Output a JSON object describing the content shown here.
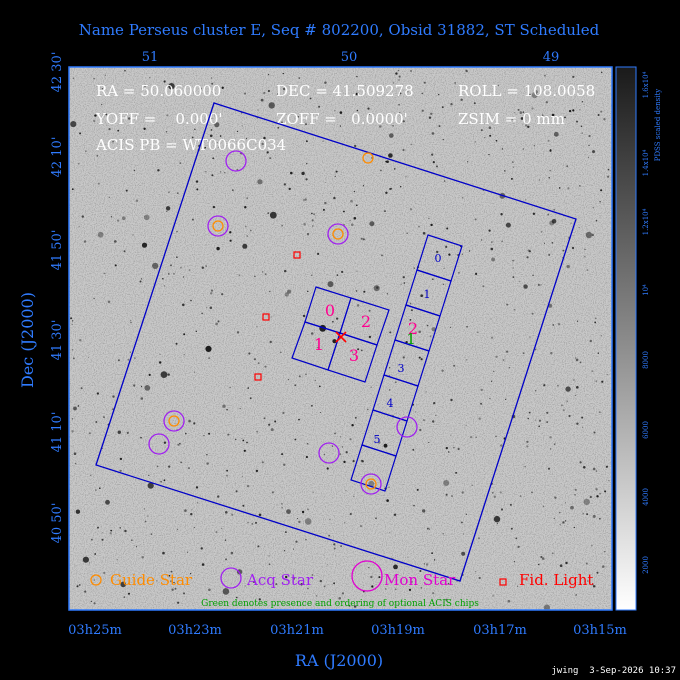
{
  "header": {
    "title": "Name Perseus cluster E, Seq # 802200, Obsid 31882, ST Scheduled"
  },
  "info": {
    "ra": "RA = 50.060000",
    "dec": "DEC = 41.509278",
    "roll": "ROLL = 108.0058",
    "yoff": "YOFF =    0.000'",
    "zoff": "ZOFF =   0.0000'",
    "zsim": "ZSIM = 0 mm",
    "acis": "ACIS PB = WT0066C034"
  },
  "axes": {
    "top_ticks": [
      "51",
      "50",
      "49"
    ],
    "left_ticks": [
      "42  30'",
      "42  10'",
      "41  50'",
      "41  30'",
      "41  10'",
      "40  50'"
    ],
    "bottom_ticks": [
      "03h25m",
      "03h23m",
      "03h21m",
      "03h19m",
      "03h17m",
      "03h15m"
    ],
    "xlabel": "RA (J2000)",
    "ylabel": "Dec (J2000)"
  },
  "colorbar": {
    "label": "PDSS scaled density",
    "ticks": [
      "1.6x10⁴",
      "1.4x10⁴",
      "1.2x10⁴",
      "10⁴",
      "8000",
      "6000",
      "4000",
      "2000"
    ]
  },
  "chips": {
    "i_labels": [
      "0",
      "2",
      "1",
      "3"
    ],
    "s_labels": [
      "0",
      "1",
      "2",
      "3",
      "4",
      "5"
    ],
    "optional_label": "1"
  },
  "legend": {
    "guide": "Guide Star",
    "acq": "Acq Star",
    "mon": "Mon Star",
    "fid": "Fid. Light",
    "note": "Green denotes presence and ordering of optional ACIS chips"
  },
  "footer": {
    "stamp": "jwing  3-Sep-2026 10:37"
  },
  "colors": {
    "guide": "#ff8c00",
    "acq": "#a020f0",
    "mon": "#e000d0",
    "fid": "#ff0000",
    "frame": "#0000c8",
    "axis_text": "#2f7bff"
  },
  "icons": {
    "guide": "orange-circle-icon",
    "acq": "purple-circle-icon",
    "mon": "magenta-circle-icon",
    "fid": "red-square-icon",
    "aimpoint": "red-x-icon"
  }
}
